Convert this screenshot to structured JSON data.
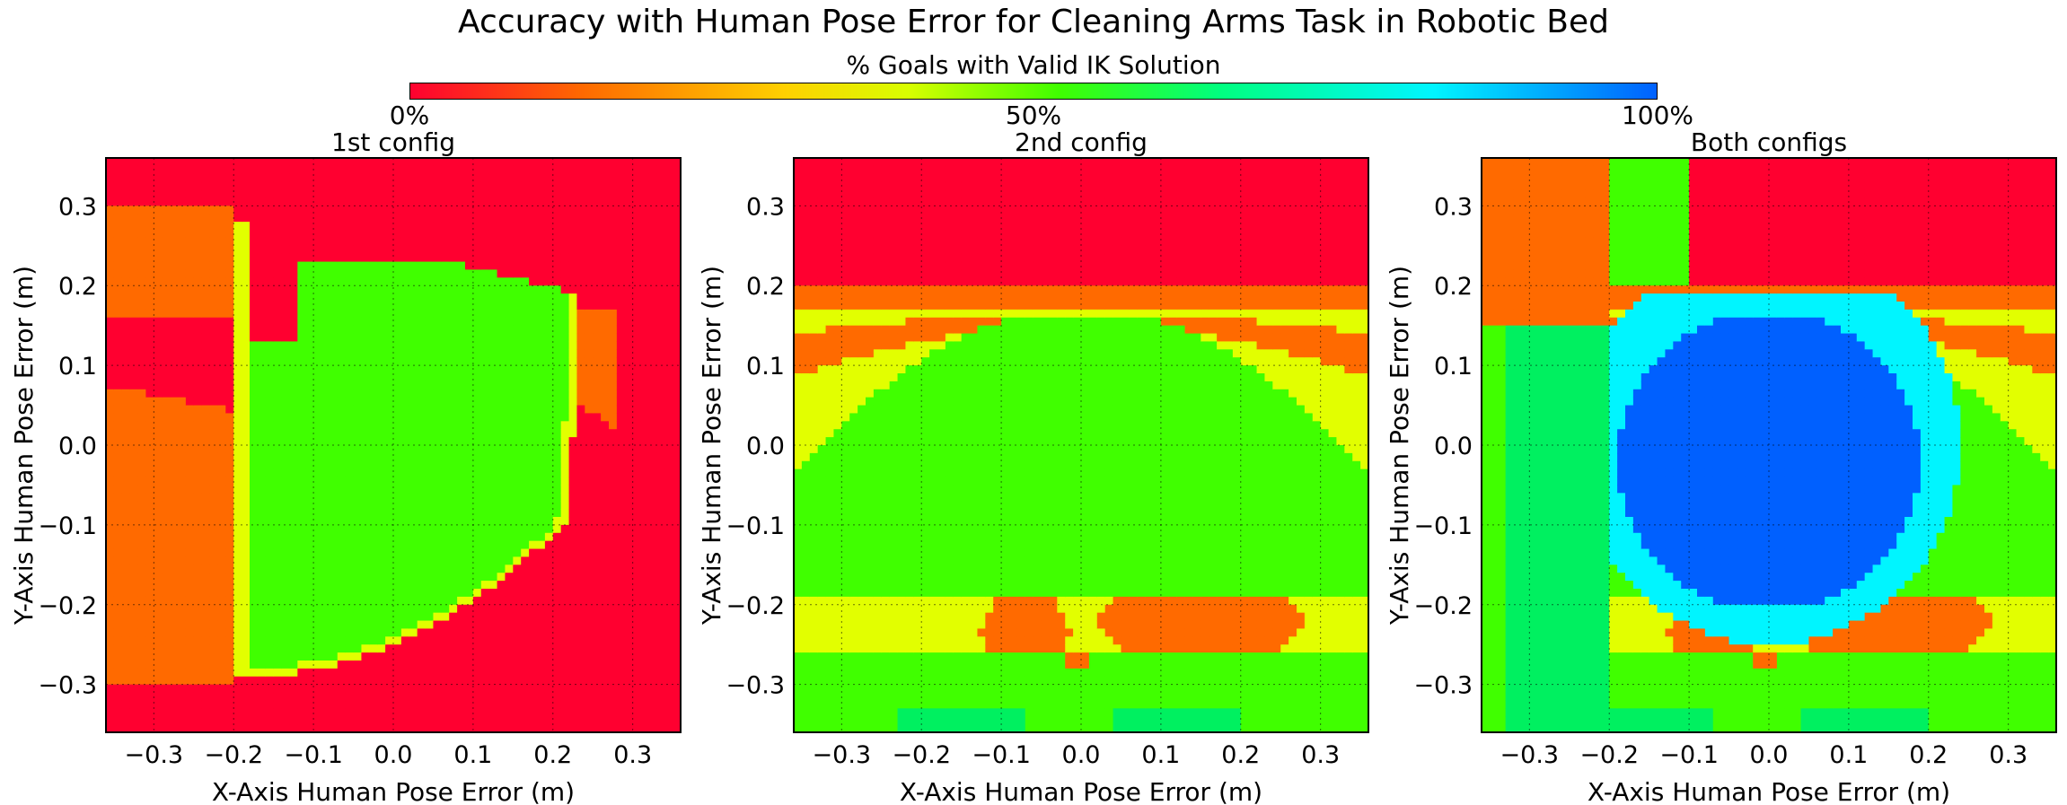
{
  "chart_data": {
    "type": "heatmap",
    "title": "Accuracy with Human Pose Error for Cleaning Arms Task in Robotic Bed",
    "colorbar": {
      "label": "% Goals with Valid IK Solution",
      "ticks": [
        "0%",
        "50%",
        "100%"
      ],
      "colormap": "gist_rainbow-like (red → orange → yellow → green → cyan → blue)",
      "stops": [
        "#ff0030",
        "#ff6a00",
        "#ffd000",
        "#d8ff00",
        "#40ff00",
        "#00ff80",
        "#00f5ff",
        "#0060ff"
      ]
    },
    "shared": {
      "xlabel": "X-Axis Human Pose Error (m)",
      "ylabel": "Y-Axis Human Pose Error (m)",
      "xlim": [
        -0.36,
        0.36
      ],
      "ylim": [
        -0.36,
        0.36
      ],
      "xticks": [
        -0.3,
        -0.2,
        -0.1,
        0.0,
        0.1,
        0.2,
        0.3
      ],
      "yticks": [
        -0.3,
        -0.2,
        -0.1,
        0.0,
        0.1,
        0.2,
        0.3
      ],
      "xtick_labels": [
        "−0.3",
        "−0.2",
        "−0.1",
        "0.0",
        "0.1",
        "0.2",
        "0.3"
      ],
      "ytick_labels": [
        "−0.3",
        "−0.2",
        "−0.1",
        "0.0",
        "0.1",
        "0.2",
        "0.3"
      ],
      "grid": true,
      "grid_style": "dotted"
    },
    "panels": [
      {
        "title": "1st config"
      },
      {
        "title": "2nd config"
      },
      {
        "title": "Both configs"
      }
    ]
  }
}
